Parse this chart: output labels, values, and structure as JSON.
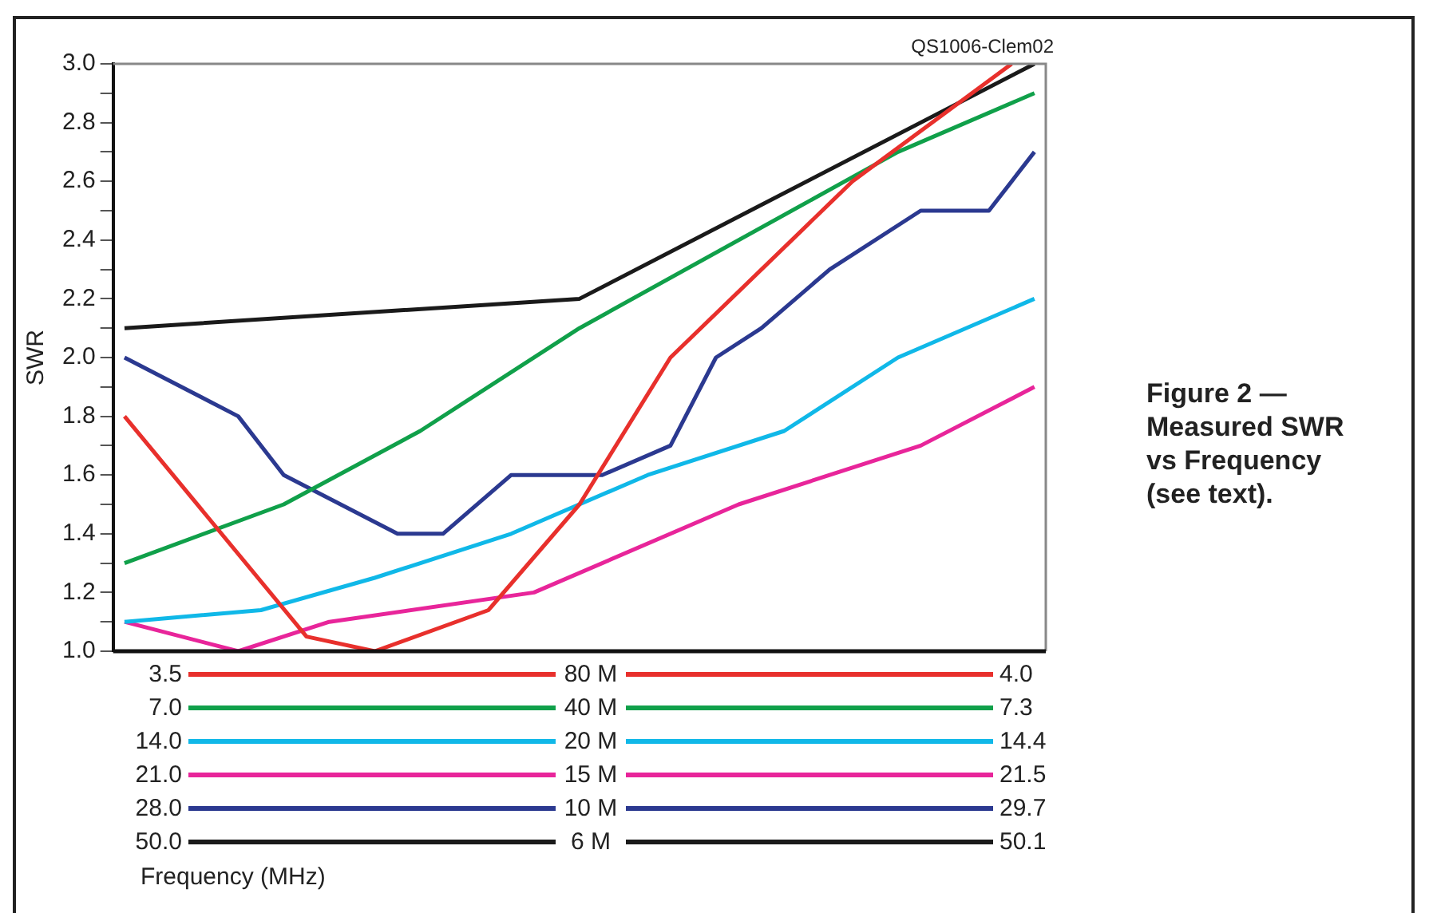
{
  "chart_data": {
    "type": "line",
    "title": "Figure 2 — Measured SWR vs Frequency (see text).",
    "ylabel": "SWR",
    "annotations": [
      "QS1006-Clem02",
      "3.5",
      "4.0",
      "7.0",
      "7.3",
      "14.0",
      "14.4",
      "21.0",
      "21.5",
      "28.0",
      "29.7",
      "50.0",
      "50.1",
      "Frequency (MHz)"
    ],
    "categories": [
      null,
      null,
      null,
      null,
      null,
      null,
      null,
      null,
      null,
      null,
      null,
      null,
      null,
      null,
      null,
      null,
      null,
      null,
      null,
      null,
      null,
      null,
      null,
      null,
      null,
      null,
      null,
      null,
      null,
      null,
      null,
      null,
      null,
      null,
      null,
      null,
      null,
      null,
      null,
      null,
      null
    ],
    "ylim": [
      1.0,
      3.0
    ],
    "yticks": [
      {
        "value": 1.0,
        "label": "1.0"
      },
      {
        "value": 1.1,
        "label": null
      },
      {
        "value": 1.2,
        "label": "1.2"
      },
      {
        "value": 1.3,
        "label": null
      },
      {
        "value": 1.4,
        "label": "1.4"
      },
      {
        "value": 1.5,
        "label": null
      },
      {
        "value": 1.6,
        "label": "1.6"
      },
      {
        "value": 1.7,
        "label": null
      },
      {
        "value": 1.8,
        "label": "1.8"
      },
      {
        "value": 1.9,
        "label": null
      },
      {
        "value": 2.0,
        "label": "2.0"
      },
      {
        "value": 2.1,
        "label": null
      },
      {
        "value": 2.2,
        "label": "2.2"
      },
      {
        "value": 2.3,
        "label": null
      },
      {
        "value": 2.4,
        "label": "2.4"
      },
      {
        "value": 2.5,
        "label": null
      },
      {
        "value": 2.6,
        "label": "2.6"
      },
      {
        "value": 2.7,
        "label": null
      },
      {
        "value": 2.8,
        "label": "2.8"
      },
      {
        "value": 2.9,
        "label": null
      },
      {
        "value": 3.0,
        "label": "3.0"
      }
    ],
    "grid": false,
    "legend": "bottom",
    "marker": "none",
    "line_style": "solid",
    "tick_labels": "y",
    "series": [
      {
        "name": "80 M",
        "color": "#e8302c",
        "values": [
          1.8,
          null,
          null,
          null,
          null,
          null,
          null,
          null,
          1.05,
          null,
          null,
          1.0,
          null,
          null,
          null,
          null,
          1.14,
          null,
          null,
          null,
          1.5,
          null,
          null,
          null,
          2.0,
          null,
          null,
          null,
          null,
          null,
          null,
          null,
          2.6,
          null,
          null,
          null,
          null,
          null,
          null,
          3.0,
          null
        ]
      },
      {
        "name": "40 M",
        "color": "#10a04a",
        "values": [
          1.3,
          null,
          null,
          null,
          null,
          null,
          null,
          1.5,
          null,
          null,
          null,
          null,
          null,
          1.75,
          null,
          null,
          null,
          null,
          null,
          null,
          2.1,
          null,
          null,
          null,
          null,
          null,
          null,
          null,
          null,
          null,
          null,
          null,
          null,
          null,
          2.7,
          null,
          null,
          null,
          null,
          null,
          2.9
        ]
      },
      {
        "name": "20 M",
        "color": "#10b8e8",
        "values": [
          1.1,
          null,
          null,
          null,
          null,
          null,
          1.14,
          null,
          null,
          null,
          null,
          1.25,
          null,
          null,
          null,
          null,
          null,
          1.4,
          null,
          null,
          null,
          null,
          null,
          1.6,
          null,
          null,
          null,
          null,
          null,
          1.75,
          null,
          null,
          null,
          null,
          2.0,
          null,
          null,
          null,
          null,
          null,
          2.2
        ]
      },
      {
        "name": "15 M",
        "color": "#e8259a",
        "values": [
          1.1,
          null,
          null,
          null,
          null,
          1.0,
          null,
          null,
          null,
          1.1,
          null,
          null,
          null,
          null,
          null,
          null,
          null,
          null,
          1.2,
          null,
          null,
          null,
          null,
          null,
          null,
          null,
          null,
          1.5,
          null,
          null,
          null,
          null,
          null,
          null,
          null,
          1.7,
          null,
          null,
          null,
          null,
          1.9
        ]
      },
      {
        "name": "10 M",
        "color": "#2b3990",
        "values": [
          2.0,
          null,
          null,
          null,
          null,
          1.8,
          null,
          1.6,
          null,
          null,
          null,
          null,
          1.4,
          null,
          1.4,
          null,
          null,
          1.6,
          null,
          1.6,
          null,
          1.6,
          null,
          null,
          1.7,
          null,
          2.0,
          null,
          2.1,
          null,
          null,
          2.3,
          null,
          null,
          null,
          2.5,
          null,
          null,
          2.5,
          null,
          2.7
        ]
      },
      {
        "name": "6 M",
        "color": "#1a1a1a",
        "values": [
          2.1,
          null,
          null,
          null,
          null,
          null,
          null,
          null,
          null,
          null,
          null,
          null,
          null,
          null,
          null,
          null,
          null,
          null,
          null,
          null,
          2.2,
          null,
          null,
          null,
          null,
          null,
          null,
          null,
          null,
          null,
          null,
          null,
          null,
          null,
          null,
          null,
          null,
          null,
          null,
          null,
          3.0
        ]
      }
    ]
  }
}
